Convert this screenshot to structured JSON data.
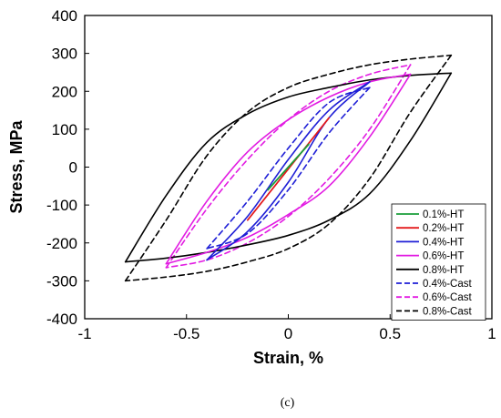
{
  "chart_data": {
    "type": "line",
    "title": "",
    "xlabel": "Strain, %",
    "ylabel": "Stress, MPa",
    "caption": "(c)",
    "xlim": [
      -1,
      1
    ],
    "ylim": [
      -400,
      400
    ],
    "xticks": [
      -1,
      -0.5,
      0,
      0.5,
      1
    ],
    "yticks": [
      -400,
      -300,
      -200,
      -100,
      0,
      100,
      200,
      300,
      400
    ],
    "grid": false,
    "legend_position": "bottom-right",
    "series": [
      {
        "name": "0.1%-HT",
        "color": "#1a9e3a",
        "dash": "solid",
        "amplitude": 0.1,
        "upper_points": [
          [
            -0.1,
            -60
          ],
          [
            0.1,
            60
          ]
        ],
        "lower_points": [
          [
            0.1,
            60
          ],
          [
            -0.1,
            -60
          ]
        ]
      },
      {
        "name": "0.2%-HT",
        "color": "#e41a1c",
        "dash": "solid",
        "amplitude": 0.2,
        "upper_points": [
          [
            -0.2,
            -140
          ],
          [
            0.2,
            130
          ]
        ],
        "lower_points": [
          [
            0.2,
            130
          ],
          [
            -0.2,
            -140
          ]
        ]
      },
      {
        "name": "0.4%-HT",
        "color": "#1f1fd6",
        "dash": "solid",
        "amplitude": 0.4,
        "upper_points": [
          [
            -0.4,
            -245
          ],
          [
            -0.2,
            -130
          ],
          [
            0,
            20
          ],
          [
            0.2,
            150
          ],
          [
            0.4,
            225
          ]
        ],
        "lower_points": [
          [
            0.4,
            225
          ],
          [
            0.2,
            130
          ],
          [
            0,
            -40
          ],
          [
            -0.2,
            -170
          ],
          [
            -0.4,
            -245
          ]
        ]
      },
      {
        "name": "0.6%-HT",
        "color": "#e21be2",
        "dash": "solid",
        "amplitude": 0.6,
        "upper_points": [
          [
            -0.6,
            -255
          ],
          [
            -0.4,
            -90
          ],
          [
            -0.2,
            40
          ],
          [
            0,
            125
          ],
          [
            0.2,
            185
          ],
          [
            0.4,
            225
          ],
          [
            0.6,
            245
          ]
        ],
        "lower_points": [
          [
            0.6,
            245
          ],
          [
            0.4,
            80
          ],
          [
            0.2,
            -50
          ],
          [
            0,
            -125
          ],
          [
            -0.2,
            -185
          ],
          [
            -0.4,
            -225
          ],
          [
            -0.6,
            -255
          ]
        ]
      },
      {
        "name": "0.8%-HT",
        "color": "#000000",
        "dash": "solid",
        "amplitude": 0.8,
        "upper_points": [
          [
            -0.8,
            -250
          ],
          [
            -0.6,
            -75
          ],
          [
            -0.4,
            65
          ],
          [
            -0.2,
            140
          ],
          [
            0,
            185
          ],
          [
            0.2,
            210
          ],
          [
            0.4,
            230
          ],
          [
            0.6,
            242
          ],
          [
            0.8,
            248
          ]
        ],
        "lower_points": [
          [
            0.8,
            248
          ],
          [
            0.6,
            70
          ],
          [
            0.4,
            -70
          ],
          [
            0.2,
            -140
          ],
          [
            0,
            -180
          ],
          [
            -0.2,
            -205
          ],
          [
            -0.4,
            -225
          ],
          [
            -0.6,
            -240
          ],
          [
            -0.8,
            -250
          ]
        ]
      },
      {
        "name": "0.4%-Cast",
        "color": "#1f1fd6",
        "dash": "dashed",
        "amplitude": 0.4,
        "upper_points": [
          [
            -0.4,
            -215
          ],
          [
            -0.2,
            -90
          ],
          [
            0,
            50
          ],
          [
            0.2,
            170
          ],
          [
            0.4,
            210
          ]
        ],
        "lower_points": [
          [
            0.4,
            210
          ],
          [
            0.2,
            90
          ],
          [
            0,
            -60
          ],
          [
            -0.2,
            -175
          ],
          [
            -0.4,
            -215
          ]
        ]
      },
      {
        "name": "0.6%-Cast",
        "color": "#e21be2",
        "dash": "dashed",
        "amplitude": 0.6,
        "upper_points": [
          [
            -0.6,
            -265
          ],
          [
            -0.4,
            -110
          ],
          [
            -0.2,
            20
          ],
          [
            0,
            125
          ],
          [
            0.2,
            200
          ],
          [
            0.4,
            245
          ],
          [
            0.6,
            270
          ]
        ],
        "lower_points": [
          [
            0.6,
            270
          ],
          [
            0.4,
            100
          ],
          [
            0.2,
            -30
          ],
          [
            0,
            -130
          ],
          [
            -0.2,
            -200
          ],
          [
            -0.4,
            -245
          ],
          [
            -0.6,
            -265
          ]
        ]
      },
      {
        "name": "0.8%-Cast",
        "color": "#000000",
        "dash": "dashed",
        "amplitude": 0.8,
        "upper_points": [
          [
            -0.8,
            -300
          ],
          [
            -0.6,
            -140
          ],
          [
            -0.4,
            30
          ],
          [
            -0.2,
            145
          ],
          [
            0,
            210
          ],
          [
            0.2,
            245
          ],
          [
            0.4,
            270
          ],
          [
            0.6,
            285
          ],
          [
            0.8,
            295
          ]
        ],
        "lower_points": [
          [
            0.8,
            295
          ],
          [
            0.6,
            145
          ],
          [
            0.4,
            -30
          ],
          [
            0.2,
            -150
          ],
          [
            0,
            -215
          ],
          [
            -0.2,
            -250
          ],
          [
            -0.4,
            -275
          ],
          [
            -0.6,
            -290
          ],
          [
            -0.8,
            -300
          ]
        ]
      }
    ]
  }
}
